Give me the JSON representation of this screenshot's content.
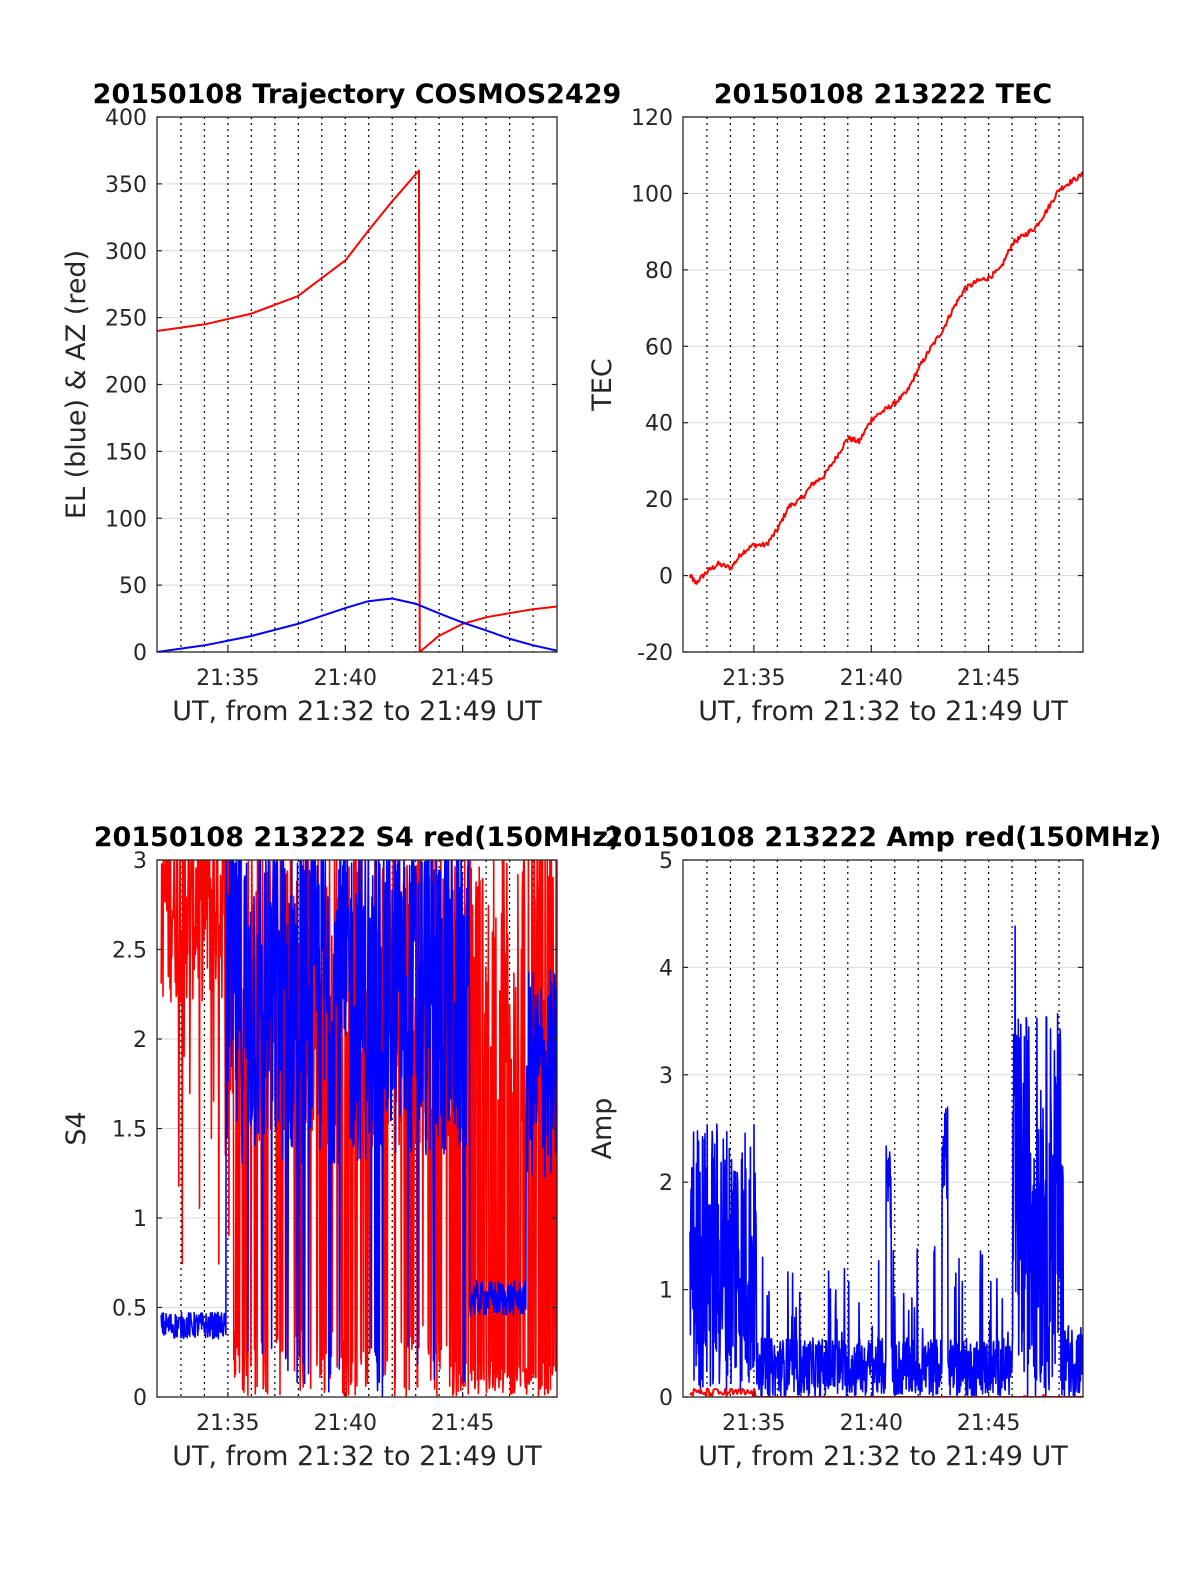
{
  "colors": {
    "red": "#ff0000",
    "blue": "#0000ff",
    "grid": "#d9d9d9",
    "axis": "#262626"
  },
  "chart_data": [
    {
      "type": "line",
      "title": "20150108 Trajectory COSMOS2429",
      "xlabel": "UT, from 21:32 to 21:49 UT",
      "ylabel": "EL (blue) & AZ (red)",
      "xlim": [
        21.533,
        21.817
      ],
      "ylim": [
        0,
        400
      ],
      "yticks": [
        0,
        50,
        100,
        150,
        200,
        250,
        300,
        350,
        400
      ],
      "xticks": [
        {
          "value": 21.5833,
          "label": "21:35"
        },
        {
          "value": 21.6667,
          "label": "21:40"
        },
        {
          "value": 21.75,
          "label": "21:45"
        }
      ],
      "grid": true,
      "series": [
        {
          "color": "red",
          "kind": "az",
          "x": [
            21.533,
            21.567,
            21.6,
            21.633,
            21.667,
            21.683,
            21.7,
            21.719,
            21.7195,
            21.733,
            21.75,
            21.767,
            21.783,
            21.8,
            21.817
          ],
          "y": [
            240,
            245,
            253,
            266,
            293,
            315,
            337,
            360,
            0,
            12,
            21,
            26,
            29,
            32,
            34
          ]
        },
        {
          "color": "blue",
          "kind": "el",
          "x": [
            21.533,
            21.567,
            21.6,
            21.633,
            21.65,
            21.667,
            21.683,
            21.7,
            21.717,
            21.733,
            21.75,
            21.767,
            21.783,
            21.8,
            21.817
          ],
          "y": [
            0,
            5,
            12,
            21,
            27,
            33,
            38,
            40,
            36,
            29,
            22,
            16,
            10,
            5,
            1
          ]
        }
      ]
    },
    {
      "type": "line",
      "title": "20150108 213222 TEC",
      "xlabel": "UT, from 21:32 to 21:49 UT",
      "ylabel": "TEC",
      "xlim": [
        21.533,
        21.817
      ],
      "ylim": [
        -20,
        120
      ],
      "yticks": [
        -20,
        0,
        20,
        40,
        60,
        80,
        100,
        120
      ],
      "xticks": [
        {
          "value": 21.5833,
          "label": "21:35"
        },
        {
          "value": 21.6667,
          "label": "21:40"
        },
        {
          "value": 21.75,
          "label": "21:45"
        }
      ],
      "grid": true,
      "series": [
        {
          "color": "red",
          "kind": "tec",
          "x": [
            21.538,
            21.542,
            21.55,
            21.558,
            21.567,
            21.575,
            21.583,
            21.592,
            21.6,
            21.608,
            21.617,
            21.625,
            21.633,
            21.642,
            21.65,
            21.658,
            21.667,
            21.675,
            21.683,
            21.692,
            21.7,
            21.708,
            21.717,
            21.725,
            21.733,
            21.742,
            21.75,
            21.758,
            21.767,
            21.775,
            21.783,
            21.792,
            21.8,
            21.808,
            21.817
          ],
          "y": [
            0,
            -2,
            1,
            3,
            2,
            6,
            8,
            8,
            12,
            18,
            20,
            24,
            26,
            31,
            36,
            35,
            41,
            43,
            45,
            48,
            54,
            59,
            64,
            70,
            75,
            77,
            78,
            80,
            87,
            89,
            91,
            96,
            101,
            103,
            105
          ]
        }
      ]
    },
    {
      "type": "line",
      "title": "20150108 213222 S4 red(150MHz)",
      "xlabel": "UT, from 21:32 to 21:49 UT",
      "ylabel": "S4",
      "xlim": [
        21.533,
        21.817
      ],
      "ylim": [
        0,
        3
      ],
      "yticks": [
        0,
        0.5,
        1,
        1.5,
        2,
        2.5,
        3
      ],
      "xticks": [
        {
          "value": 21.5833,
          "label": "21:35"
        },
        {
          "value": 21.6667,
          "label": "21:40"
        },
        {
          "value": 21.75,
          "label": "21:45"
        }
      ],
      "grid": true,
      "series": [
        {
          "color": "red",
          "kind": "s4red",
          "x_range": [
            21.536,
            21.817
          ]
        },
        {
          "color": "blue",
          "kind": "s4blue",
          "x_range": [
            21.536,
            21.817
          ]
        }
      ]
    },
    {
      "type": "line",
      "title": "20150108 213222 Amp red(150MHz)",
      "xlabel": "UT, from 21:32 to 21:49 UT",
      "ylabel": "Amp",
      "xlim": [
        21.533,
        21.817
      ],
      "ylim": [
        0,
        5
      ],
      "yticks": [
        0,
        1,
        2,
        3,
        4,
        5
      ],
      "xticks": [
        {
          "value": 21.5833,
          "label": "21:35"
        },
        {
          "value": 21.6667,
          "label": "21:40"
        },
        {
          "value": 21.75,
          "label": "21:45"
        }
      ],
      "grid": true,
      "series": [
        {
          "color": "blue",
          "kind": "ampblue",
          "x_range": [
            21.538,
            21.817
          ]
        },
        {
          "color": "red",
          "kind": "ampred",
          "x_range": [
            21.538,
            21.817
          ]
        }
      ]
    }
  ]
}
